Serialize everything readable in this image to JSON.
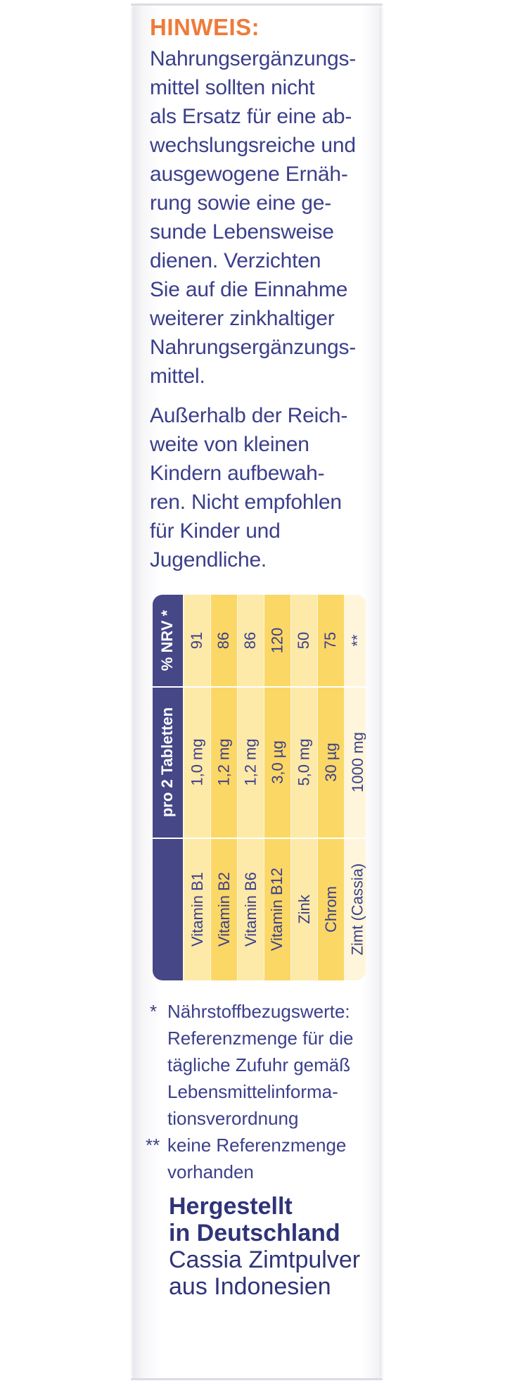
{
  "hinweis": {
    "title": "HINWEIS:",
    "lines": [
      "Nahrungsergänzungs-",
      "mittel sollten nicht",
      "als Ersatz für eine ab-",
      "wechslungsreiche und",
      "ausgewogene Ernäh-",
      "rung sowie eine ge-",
      "sunde Lebensweise",
      "dienen. Verzichten",
      "Sie auf die Einnahme",
      "weiterer zinkhaltiger",
      "Nahrungsergänzungs-",
      "mittel."
    ]
  },
  "storage": {
    "lines": [
      "Außerhalb der Reich-",
      "weite von kleinen",
      "Kindern aufbewah-",
      "ren. Nicht empfohlen",
      "für Kinder und",
      "Jugendliche."
    ]
  },
  "table": {
    "header_nutrient": "",
    "header_amount": "pro 2 Tabletten",
    "header_nrv": "% NRV *",
    "rows": [
      {
        "name": "Vitamin B1",
        "amount": "1,0 mg",
        "nrv": "91"
      },
      {
        "name": "Vitamin B2",
        "amount": "1,2 mg",
        "nrv": "86"
      },
      {
        "name": "Vitamin B6",
        "amount": "1,2 mg",
        "nrv": "86"
      },
      {
        "name": "Vitamin B12",
        "amount": "3,0 µg",
        "nrv": "120"
      },
      {
        "name": "Zink",
        "amount": "5,0 mg",
        "nrv": "50"
      },
      {
        "name": "Chrom",
        "amount": "30 µg",
        "nrv": "75"
      },
      {
        "name": "Zimt (Cassia)",
        "amount": "1000 mg",
        "nrv": "**"
      }
    ],
    "colors": {
      "header": "#454787",
      "row_dark": "#fbd766",
      "row_light": "#fde9a8",
      "row_lightest": "#fff5da"
    }
  },
  "footnotes": {
    "single_mark": "*",
    "single_lines": [
      "Nährstoffbezugswerte:",
      "Referenzmenge für die",
      "tägliche Zufuhr gemäß",
      "Lebensmittelinforma-",
      "tionsverordnung"
    ],
    "double_mark": "**",
    "double_lines": [
      "keine Referenzmenge",
      "vorhanden"
    ]
  },
  "origin": {
    "made_line1": "Hergestellt",
    "made_line2": "in Deutschland",
    "cinnamon_line1": "Cassia Zimtpulver",
    "cinnamon_line2": "aus Indonesien"
  }
}
